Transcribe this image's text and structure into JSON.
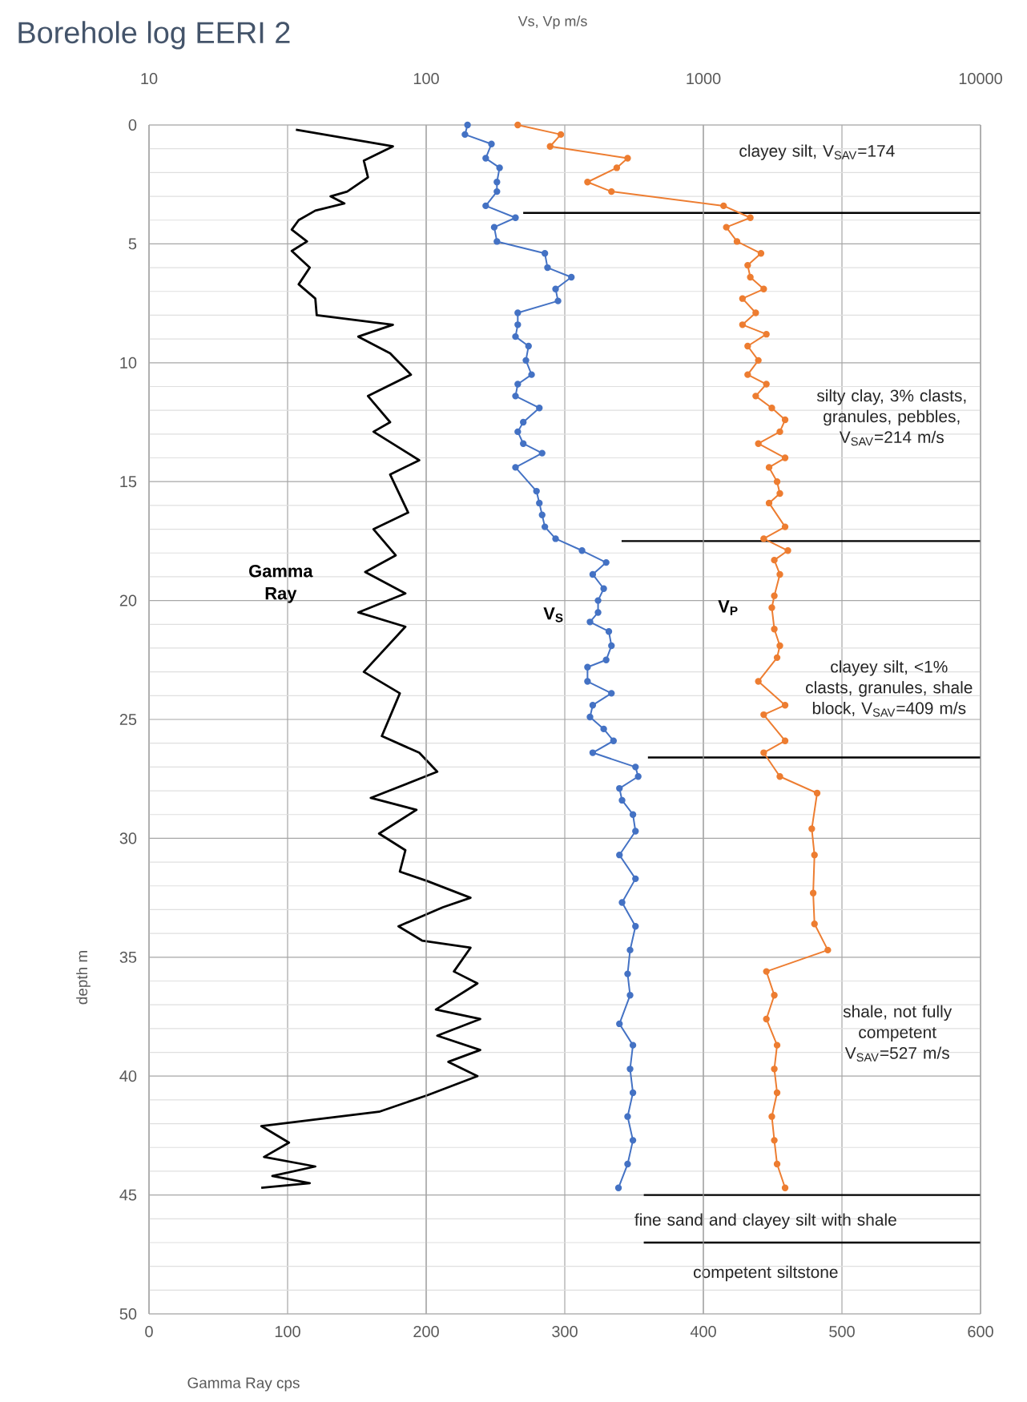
{
  "chart_data": {
    "type": "line",
    "title": "Borehole log EERI 2",
    "xlabel": "Gamma Ray cps",
    "x2label": "Vs, Vp m/s",
    "ylabel": "depth m",
    "xlim": [
      0,
      600
    ],
    "xticks": [
      0,
      100,
      200,
      300,
      400,
      500,
      600
    ],
    "x2lim": [
      10,
      10000
    ],
    "x2ticks": [
      10,
      100,
      1000,
      10000
    ],
    "ylim": [
      50,
      0
    ],
    "yticks": [
      0,
      5,
      10,
      15,
      20,
      25,
      30,
      35,
      40,
      45,
      50
    ],
    "log": "x2",
    "grid": true,
    "series": [
      {
        "name": "Gamma Ray",
        "color": "#000000",
        "marker": "none",
        "x": [
          106,
          176,
          155,
          158,
          143,
          131,
          141,
          120,
          108,
          103,
          114,
          103,
          116,
          108,
          120,
          121,
          176,
          151,
          174,
          189,
          158,
          174,
          162,
          195,
          174,
          187,
          162,
          178,
          156,
          185,
          151,
          185,
          155,
          181,
          168,
          195,
          208,
          160,
          193,
          166,
          185,
          181,
          201,
          232,
          212,
          180,
          197,
          232,
          220,
          237,
          207,
          239,
          208,
          239,
          216,
          237,
          201,
          166,
          81,
          101,
          83,
          120,
          89,
          116,
          81
        ],
        "values": [
          0.2,
          0.9,
          1.5,
          2.2,
          2.8,
          3.0,
          3.3,
          3.6,
          4.0,
          4.4,
          4.9,
          5.3,
          6.0,
          6.7,
          7.3,
          8.0,
          8.4,
          8.9,
          9.6,
          10.5,
          11.4,
          12.5,
          12.9,
          14.1,
          14.7,
          16.3,
          17.0,
          18.1,
          18.8,
          19.7,
          20.5,
          21.1,
          23.0,
          23.9,
          25.7,
          26.4,
          27.2,
          28.3,
          28.8,
          29.8,
          30.5,
          31.4,
          31.8,
          32.5,
          32.9,
          33.7,
          34.3,
          34.6,
          35.6,
          36.1,
          37.2,
          37.6,
          38.3,
          38.9,
          39.4,
          40.0,
          40.8,
          41.5,
          42.1,
          42.8,
          43.4,
          43.8,
          44.2,
          44.5,
          44.7
        ]
      },
      {
        "name": "V$_{S}$",
        "color": "#4472c4",
        "marker": "circle",
        "axis": "x2",
        "x": [
          141,
          138,
          172,
          164,
          184,
          180,
          180,
          164,
          210,
          176,
          180,
          268,
          274,
          334,
          293,
          299,
          214,
          214,
          210,
          234,
          229,
          240,
          214,
          210,
          256,
          224,
          214,
          224,
          262,
          210,
          250,
          256,
          262,
          268,
          293,
          365,
          446,
          399,
          437,
          417,
          417,
          390,
          456,
          466,
          446,
          382,
          382,
          466,
          399,
          390,
          437,
          474,
          399,
          569,
          582,
          498,
          509,
          557,
          569,
          498,
          569,
          509,
          569,
          544,
          533,
          544,
          498,
          557,
          544,
          557,
          533,
          557,
          533,
          494
        ],
        "values": [
          0,
          0.4,
          0.8,
          1.4,
          1.8,
          2.4,
          2.8,
          3.4,
          3.9,
          4.3,
          4.9,
          5.4,
          6.0,
          6.4,
          6.9,
          7.4,
          7.9,
          8.4,
          8.9,
          9.3,
          9.9,
          10.5,
          10.9,
          11.4,
          11.9,
          12.5,
          12.9,
          13.4,
          13.8,
          14.4,
          15.4,
          15.9,
          16.4,
          16.9,
          17.4,
          17.9,
          18.4,
          18.9,
          19.5,
          20.0,
          20.5,
          20.9,
          21.3,
          21.9,
          22.5,
          22.8,
          23.4,
          23.9,
          24.4,
          24.9,
          25.4,
          25.9,
          26.4,
          27.0,
          27.4,
          27.9,
          28.4,
          29.0,
          29.7,
          30.7,
          31.7,
          32.7,
          33.7,
          34.7,
          35.7,
          36.6,
          37.8,
          38.7,
          39.7,
          40.7,
          41.7,
          42.7,
          43.7,
          44.7
        ]
      },
      {
        "name": "V$_{P}$",
        "color": "#ed7d31",
        "marker": "circle",
        "axis": "x2",
        "x": [
          214,
          306,
          280,
          533,
          487,
          382,
          466,
          1183,
          1477,
          1210,
          1322,
          1614,
          1445,
          1477,
          1651,
          1384,
          1545,
          1384,
          1688,
          1445,
          1579,
          1445,
          1688,
          1545,
          1766,
          1972,
          1888,
          1579,
          1972,
          1726,
          1845,
          1888,
          1726,
          1972,
          1651,
          2018,
          1803,
          1888,
          1803,
          1766,
          1803,
          1888,
          1845,
          1579,
          1972,
          1651,
          1972,
          1651,
          1888,
          2573,
          2461,
          2517,
          2490,
          2517,
          2812,
          1688,
          1803,
          1688,
          1845,
          1803,
          1845,
          1766,
          1803,
          1845,
          1972
        ],
        "values": [
          0,
          0.4,
          0.9,
          1.4,
          1.8,
          2.4,
          2.8,
          3.4,
          3.9,
          4.3,
          4.9,
          5.4,
          5.9,
          6.4,
          6.9,
          7.3,
          7.9,
          8.4,
          8.8,
          9.3,
          9.9,
          10.5,
          10.9,
          11.4,
          11.9,
          12.4,
          12.9,
          13.4,
          14.0,
          14.4,
          15.0,
          15.5,
          15.9,
          16.9,
          17.4,
          17.9,
          18.3,
          18.9,
          19.8,
          20.3,
          21.2,
          21.9,
          22.4,
          23.4,
          24.4,
          24.8,
          25.9,
          26.4,
          27.4,
          28.1,
          29.6,
          30.7,
          32.3,
          33.6,
          34.7,
          35.6,
          36.6,
          37.6,
          38.7,
          39.7,
          40.7,
          41.7,
          42.7,
          43.7,
          44.7
        ]
      }
    ],
    "ref_lines": [
      {
        "axis": "y",
        "value": 3.7,
        "color": "#000000"
      },
      {
        "axis": "y",
        "value": 17.5,
        "color": "#000000"
      },
      {
        "axis": "y",
        "value": 26.6,
        "color": "#000000"
      },
      {
        "axis": "y",
        "value": 45,
        "color": "#000000"
      },
      {
        "axis": "y",
        "value": 47,
        "color": "#000000"
      }
    ],
    "annotations": [
      "clayey silt, V$_{SAV}$=174",
      "silty clay, 3% clasts, granules, pebbles, V$_{SAV}$=214 m/s",
      "clayey silt, <1% clasts, granules, shale block, V$_{SAV}$=409 m/s",
      "shale, not fully competent V$_{SAV}$=527 m/s",
      "fine sand and clayey silt with shale",
      "competent siltstone"
    ]
  }
}
